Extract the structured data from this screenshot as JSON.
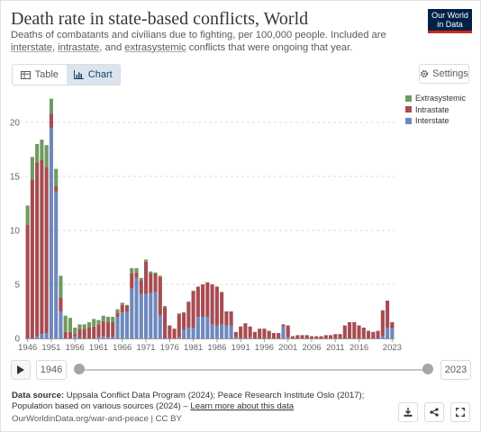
{
  "header": {
    "title": "Death rate in state-based conflicts, World",
    "subtitle_1": "Deaths of combatants and civilians due to fighting, per 100,000 people. Included are ",
    "subtitle_link_1": "interstate",
    "subtitle_2": ", ",
    "subtitle_link_2": "intrastate",
    "subtitle_3": ", and ",
    "subtitle_link_3": "extrasystemic",
    "subtitle_4": " conflicts that were ongoing that year.",
    "logo_line1": "Our World",
    "logo_line2": "in Data"
  },
  "controls": {
    "tab_table": "Table",
    "tab_chart": "Chart",
    "settings": "Settings"
  },
  "timeline": {
    "start_year": "1946",
    "end_year": "2023"
  },
  "footer": {
    "source_label": "Data source:",
    "source_text": " Uppsala Conflict Data Program (2024); Peace Research Institute Oslo (2017); Population based on various sources (2024) – ",
    "learn_more": "Learn more about this data",
    "url": "OurWorldinData.org/war-and-peace | CC BY"
  },
  "colors": {
    "interstate": "#6d88bd",
    "intrastate": "#a74c52",
    "extrasystemic": "#6f9a61"
  },
  "chart_data": {
    "type": "bar",
    "stacked": true,
    "x": [
      1946,
      1947,
      1948,
      1949,
      1950,
      1951,
      1952,
      1953,
      1954,
      1955,
      1956,
      1957,
      1958,
      1959,
      1960,
      1961,
      1962,
      1963,
      1964,
      1965,
      1966,
      1967,
      1968,
      1969,
      1970,
      1971,
      1972,
      1973,
      1974,
      1975,
      1976,
      1977,
      1978,
      1979,
      1980,
      1981,
      1982,
      1983,
      1984,
      1985,
      1986,
      1987,
      1988,
      1989,
      1990,
      1991,
      1992,
      1993,
      1994,
      1995,
      1996,
      1997,
      1998,
      1999,
      2000,
      2001,
      2002,
      2003,
      2004,
      2005,
      2006,
      2007,
      2008,
      2009,
      2010,
      2011,
      2012,
      2013,
      2014,
      2015,
      2016,
      2017,
      2018,
      2019,
      2020,
      2021,
      2022,
      2023
    ],
    "xticks": [
      "1946",
      "1951",
      "1956",
      "1961",
      "1966",
      "1971",
      "1976",
      "1981",
      "1986",
      "1991",
      "1996",
      "2001",
      "2006",
      "2011",
      "2016",
      "2023"
    ],
    "yticks": [
      0,
      5,
      10,
      15,
      20
    ],
    "ylim": [
      0,
      22.5
    ],
    "grid": true,
    "legend_position": "top-right",
    "series": [
      {
        "name": "Interstate",
        "color": "#6d88bd",
        "values": [
          0,
          0,
          0.2,
          0.4,
          0.5,
          19.5,
          13.6,
          2.5,
          0,
          0,
          0.2,
          0,
          0,
          0,
          0,
          0.1,
          0.2,
          0.1,
          0.1,
          2.0,
          2.4,
          2.5,
          4.6,
          5.6,
          4.1,
          4.1,
          4.2,
          4.3,
          2.1,
          0,
          0,
          0,
          0.1,
          0.8,
          1.0,
          1.0,
          2.0,
          2.0,
          2.0,
          1.3,
          1.2,
          1.3,
          1.2,
          1.2,
          0.1,
          0,
          0,
          0.1,
          0,
          0,
          0,
          0,
          0,
          0,
          1.1,
          0.1,
          0,
          0,
          0,
          0,
          0,
          0,
          0,
          0,
          0,
          0,
          0,
          0,
          0,
          0,
          0,
          0,
          0,
          0,
          0,
          0.2,
          1.0,
          0.9
        ]
      },
      {
        "name": "Intrastate",
        "color": "#a74c52",
        "values": [
          10.5,
          14.7,
          16.1,
          16.1,
          15.4,
          1.3,
          0.5,
          1.3,
          0.6,
          0.6,
          0.2,
          0.9,
          0.9,
          1.0,
          1.1,
          1.2,
          1.4,
          1.4,
          1.4,
          0.4,
          0.7,
          0.5,
          1.4,
          0.5,
          1.3,
          3.0,
          1.8,
          1.7,
          3.6,
          2.9,
          1.2,
          0.9,
          2.2,
          1.6,
          2.4,
          3.4,
          2.8,
          3.0,
          3.2,
          3.7,
          3.6,
          3.0,
          1.3,
          1.3,
          0.5,
          1.1,
          1.4,
          1.0,
          0.6,
          0.9,
          0.9,
          0.7,
          0.5,
          0.5,
          0.2,
          1.1,
          0.2,
          0.3,
          0.3,
          0.3,
          0.2,
          0.2,
          0.2,
          0.3,
          0.3,
          0.4,
          0.4,
          1.2,
          1.5,
          1.5,
          1.2,
          1.0,
          0.7,
          0.6,
          0.7,
          2.4,
          2.5,
          0.6
        ]
      },
      {
        "name": "Extrasystemic",
        "color": "#6f9a61",
        "values": [
          1.8,
          2.1,
          1.7,
          1.9,
          2.0,
          1.4,
          1.6,
          2.0,
          1.5,
          1.3,
          0.6,
          0.4,
          0.4,
          0.5,
          0.7,
          0.4,
          0.5,
          0.5,
          0.5,
          0.3,
          0.2,
          0.1,
          0.5,
          0.4,
          0.2,
          0.2,
          0.2,
          0.1,
          0.1,
          0.1,
          0,
          0,
          0,
          0,
          0,
          0,
          0,
          0,
          0,
          0,
          0,
          0,
          0,
          0,
          0,
          0,
          0,
          0,
          0,
          0,
          0,
          0,
          0,
          0,
          0,
          0,
          0,
          0,
          0,
          0,
          0,
          0,
          0,
          0,
          0,
          0,
          0,
          0,
          0,
          0,
          0,
          0,
          0,
          0,
          0,
          0,
          0,
          0
        ]
      }
    ]
  }
}
